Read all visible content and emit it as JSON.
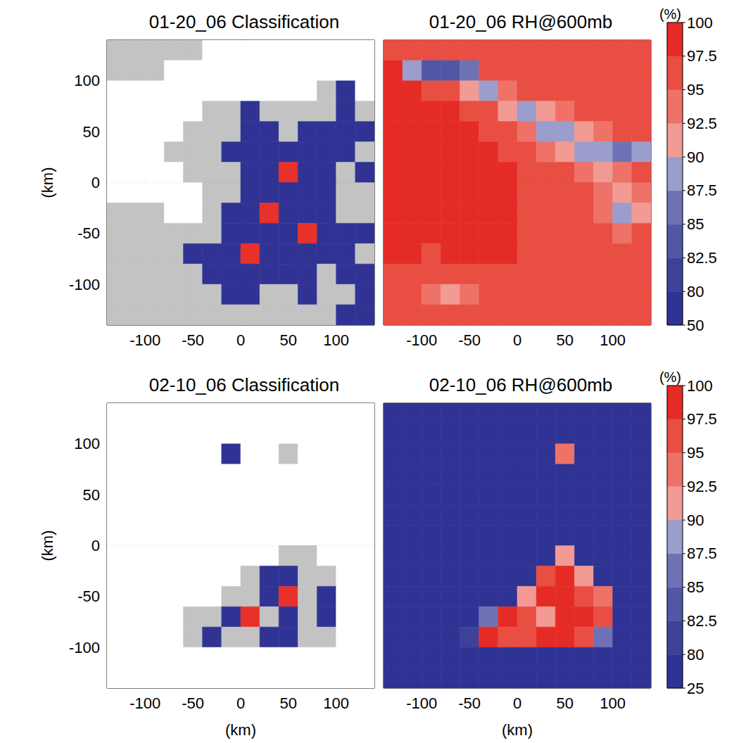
{
  "chart_data": [
    {
      "type": "heatmap",
      "title": "01-20_06 Classification",
      "x": [
        -130,
        -110,
        -90,
        -70,
        -50,
        -30,
        -10,
        10,
        30,
        50,
        70,
        90,
        110,
        130
      ],
      "y": [
        130,
        110,
        90,
        70,
        50,
        30,
        10,
        -10,
        -30,
        -50,
        -70,
        -90,
        -110,
        -130
      ],
      "values": [
        [
          1,
          1,
          1,
          1,
          1,
          0,
          0,
          0,
          0,
          0,
          0,
          0,
          0,
          0
        ],
        [
          1,
          1,
          1,
          0,
          0,
          0,
          0,
          0,
          0,
          0,
          0,
          0,
          0,
          0
        ],
        [
          0,
          0,
          0,
          0,
          0,
          0,
          0,
          0,
          0,
          0,
          0,
          1,
          2,
          0
        ],
        [
          0,
          0,
          0,
          0,
          0,
          1,
          1,
          2,
          1,
          1,
          1,
          1,
          2,
          1
        ],
        [
          0,
          0,
          0,
          0,
          1,
          1,
          1,
          2,
          2,
          1,
          2,
          2,
          2,
          2
        ],
        [
          0,
          0,
          0,
          1,
          1,
          1,
          2,
          2,
          2,
          2,
          2,
          2,
          2,
          1
        ],
        [
          0,
          0,
          0,
          0,
          1,
          1,
          1,
          2,
          2,
          3,
          2,
          2,
          1,
          2
        ],
        [
          0,
          0,
          0,
          0,
          0,
          1,
          1,
          2,
          2,
          2,
          2,
          2,
          1,
          1
        ],
        [
          1,
          1,
          1,
          0,
          0,
          1,
          2,
          2,
          3,
          2,
          2,
          2,
          1,
          1
        ],
        [
          1,
          1,
          1,
          1,
          1,
          1,
          2,
          2,
          2,
          2,
          3,
          2,
          2,
          2
        ],
        [
          1,
          1,
          1,
          1,
          2,
          2,
          2,
          3,
          2,
          2,
          2,
          2,
          2,
          1
        ],
        [
          1,
          1,
          1,
          1,
          1,
          2,
          2,
          2,
          2,
          2,
          2,
          1,
          2,
          2
        ],
        [
          1,
          1,
          1,
          1,
          1,
          1,
          2,
          2,
          1,
          1,
          2,
          1,
          1,
          2
        ],
        [
          1,
          1,
          1,
          1,
          1,
          1,
          1,
          1,
          1,
          1,
          1,
          1,
          2,
          2
        ]
      ],
      "colors": [
        "#ffffff",
        "#c3c3c3",
        "#303394",
        "#e8312a"
      ],
      "xlim": [
        -140,
        140
      ],
      "ylim": [
        -140,
        140
      ],
      "xticks": [
        -100,
        -50,
        0,
        50,
        100
      ],
      "yticks": [
        -100,
        -50,
        0,
        50,
        100
      ],
      "ylabel": "(km)",
      "tick_labels": true
    },
    {
      "type": "heatmap",
      "title": "01-20_06 RH@600mb",
      "x": [
        -130,
        -110,
        -90,
        -70,
        -50,
        -30,
        -10,
        10,
        30,
        50,
        70,
        90,
        110,
        130
      ],
      "y": [
        130,
        110,
        90,
        70,
        50,
        30,
        10,
        -10,
        -30,
        -50,
        -70,
        -90,
        -110,
        -130
      ],
      "values": [
        [
          97,
          96,
          95,
          96,
          96,
          97,
          97,
          97,
          97,
          97,
          97,
          97,
          97,
          97
        ],
        [
          98,
          88,
          84,
          83,
          86,
          95,
          97,
          97,
          97,
          97,
          97,
          97,
          97,
          97
        ],
        [
          99,
          98,
          96,
          95,
          91,
          89,
          93,
          96,
          97,
          96,
          96,
          97,
          97,
          97
        ],
        [
          99,
          99,
          99,
          98,
          97,
          95,
          91,
          88,
          90,
          93,
          95,
          96,
          96,
          97
        ],
        [
          99,
          99,
          99,
          99,
          98,
          97,
          96,
          94,
          89,
          88,
          90,
          93,
          95,
          97
        ],
        [
          99,
          99,
          99,
          99,
          99,
          98,
          97,
          96,
          94,
          90,
          88,
          89,
          87,
          88
        ],
        [
          99,
          99,
          99,
          99,
          99,
          99,
          98,
          97,
          96,
          95,
          93,
          92,
          94,
          95
        ],
        [
          99,
          99,
          99,
          99,
          99,
          99,
          98,
          97,
          96,
          96,
          95,
          94,
          90,
          93
        ],
        [
          99,
          99,
          99,
          99,
          99,
          98,
          98,
          97,
          96,
          96,
          95,
          93,
          89,
          92
        ],
        [
          99,
          99,
          99,
          99,
          99,
          98,
          98,
          97,
          97,
          96,
          96,
          95,
          94,
          96
        ],
        [
          98,
          98,
          97,
          98,
          98,
          98,
          98,
          97,
          97,
          96,
          96,
          96,
          95,
          96
        ],
        [
          97,
          96,
          95,
          96,
          97,
          97,
          97,
          97,
          97,
          96,
          96,
          96,
          95,
          96
        ],
        [
          97,
          95,
          94,
          92,
          93,
          96,
          97,
          97,
          97,
          96,
          97,
          96,
          96,
          96
        ],
        [
          97,
          96,
          96,
          95,
          95,
          97,
          97,
          97,
          97,
          97,
          97,
          97,
          97,
          96
        ]
      ],
      "colorbar": {
        "label": "(%)",
        "levels": [
          50,
          80,
          82.5,
          85,
          87.5,
          90,
          92.5,
          95,
          97.5,
          100
        ],
        "colors": [
          "#2f3393",
          "#3d4199",
          "#5257a5",
          "#6e72b4",
          "#9b9dcc",
          "#f29a94",
          "#ee7268",
          "#e94e43",
          "#e52b25"
        ]
      },
      "xlim": [
        -140,
        140
      ],
      "ylim": [
        -140,
        140
      ],
      "xticks": [
        -100,
        -50,
        0,
        50,
        100
      ],
      "yticks": [
        -100,
        -50,
        0,
        50,
        100
      ],
      "tick_labels": "x"
    },
    {
      "type": "heatmap",
      "title": "02-10_06 Classification",
      "x": [
        -130,
        -110,
        -90,
        -70,
        -50,
        -30,
        -10,
        10,
        30,
        50,
        70,
        90,
        110,
        130
      ],
      "y": [
        130,
        110,
        90,
        70,
        50,
        30,
        10,
        -10,
        -30,
        -50,
        -70,
        -90,
        -110,
        -130
      ],
      "values": [
        [
          0,
          0,
          0,
          0,
          0,
          0,
          0,
          0,
          0,
          0,
          0,
          0,
          0,
          0
        ],
        [
          0,
          0,
          0,
          0,
          0,
          0,
          0,
          0,
          0,
          0,
          0,
          0,
          0,
          0
        ],
        [
          0,
          0,
          0,
          0,
          0,
          0,
          2,
          0,
          0,
          1,
          0,
          0,
          0,
          0
        ],
        [
          0,
          0,
          0,
          0,
          0,
          0,
          0,
          0,
          0,
          0,
          0,
          0,
          0,
          0
        ],
        [
          0,
          0,
          0,
          0,
          0,
          0,
          0,
          0,
          0,
          0,
          0,
          0,
          0,
          0
        ],
        [
          0,
          0,
          0,
          0,
          0,
          0,
          0,
          0,
          0,
          0,
          0,
          0,
          0,
          0
        ],
        [
          0,
          0,
          0,
          0,
          0,
          0,
          0,
          0,
          0,
          0,
          0,
          0,
          0,
          0
        ],
        [
          0,
          0,
          0,
          0,
          0,
          0,
          0,
          0,
          0,
          1,
          1,
          0,
          0,
          0
        ],
        [
          0,
          0,
          0,
          0,
          0,
          0,
          0,
          1,
          2,
          2,
          1,
          1,
          0,
          0
        ],
        [
          0,
          0,
          0,
          0,
          0,
          0,
          1,
          1,
          2,
          3,
          1,
          2,
          0,
          0
        ],
        [
          0,
          0,
          0,
          0,
          1,
          1,
          2,
          3,
          1,
          2,
          1,
          2,
          0,
          0
        ],
        [
          0,
          0,
          0,
          0,
          1,
          2,
          1,
          1,
          2,
          2,
          1,
          1,
          0,
          0
        ],
        [
          0,
          0,
          0,
          0,
          0,
          0,
          0,
          0,
          0,
          0,
          0,
          0,
          0,
          0
        ],
        [
          0,
          0,
          0,
          0,
          0,
          0,
          0,
          0,
          0,
          0,
          0,
          0,
          0,
          0
        ]
      ],
      "colors": [
        "#ffffff",
        "#c3c3c3",
        "#303394",
        "#e8312a"
      ],
      "xlim": [
        -140,
        140
      ],
      "ylim": [
        -140,
        140
      ],
      "xticks": [
        -100,
        -50,
        0,
        50,
        100
      ],
      "yticks": [
        -100,
        -50,
        0,
        50,
        100
      ],
      "xlabel": "(km)",
      "ylabel": "(km)",
      "tick_labels": true
    },
    {
      "type": "heatmap",
      "title": "02-10_06 RH@600mb",
      "x": [
        -130,
        -110,
        -90,
        -70,
        -50,
        -30,
        -10,
        10,
        30,
        50,
        70,
        90,
        110,
        130
      ],
      "y": [
        130,
        110,
        90,
        70,
        50,
        30,
        10,
        -10,
        -30,
        -50,
        -70,
        -90,
        -110,
        -130
      ],
      "values": [
        [
          30,
          30,
          30,
          30,
          30,
          30,
          30,
          30,
          30,
          30,
          30,
          30,
          30,
          30
        ],
        [
          30,
          30,
          30,
          30,
          30,
          30,
          30,
          30,
          30,
          30,
          30,
          30,
          30,
          30
        ],
        [
          30,
          30,
          30,
          30,
          30,
          30,
          30,
          30,
          30,
          93,
          30,
          30,
          30,
          30
        ],
        [
          30,
          30,
          30,
          30,
          30,
          30,
          30,
          30,
          30,
          30,
          30,
          30,
          30,
          30
        ],
        [
          30,
          30,
          30,
          30,
          30,
          30,
          30,
          30,
          30,
          30,
          30,
          30,
          30,
          30
        ],
        [
          30,
          30,
          30,
          30,
          30,
          30,
          30,
          30,
          30,
          30,
          30,
          30,
          30,
          30
        ],
        [
          30,
          30,
          30,
          30,
          30,
          30,
          30,
          30,
          30,
          30,
          30,
          30,
          30,
          30
        ],
        [
          30,
          30,
          30,
          30,
          30,
          30,
          30,
          30,
          30,
          92,
          30,
          30,
          30,
          30
        ],
        [
          30,
          30,
          30,
          30,
          30,
          30,
          30,
          60,
          96,
          98,
          90,
          30,
          30,
          30
        ],
        [
          30,
          30,
          30,
          30,
          30,
          30,
          70,
          90,
          98,
          98,
          97,
          93,
          30,
          30
        ],
        [
          30,
          30,
          30,
          30,
          30,
          85,
          98,
          97,
          90,
          98,
          98,
          95,
          30,
          30
        ],
        [
          30,
          30,
          30,
          30,
          80,
          98,
          97,
          96,
          98,
          98,
          97,
          85,
          30,
          30
        ],
        [
          30,
          30,
          30,
          30,
          30,
          30,
          30,
          30,
          30,
          30,
          30,
          30,
          30,
          30
        ],
        [
          30,
          30,
          30,
          30,
          30,
          30,
          30,
          30,
          30,
          30,
          30,
          30,
          30,
          30
        ]
      ],
      "colorbar": {
        "label": "(%)",
        "levels": [
          25,
          80,
          82.5,
          85,
          87.5,
          90,
          92.5,
          95,
          97.5,
          100
        ],
        "colors": [
          "#2f3393",
          "#3d4199",
          "#5257a5",
          "#6e72b4",
          "#9b9dcc",
          "#f29a94",
          "#ee7268",
          "#e94e43",
          "#e52b25"
        ]
      },
      "xlim": [
        -140,
        140
      ],
      "ylim": [
        -140,
        140
      ],
      "xticks": [
        -100,
        -50,
        0,
        50,
        100
      ],
      "yticks": [
        -100,
        -50,
        0,
        50,
        100
      ],
      "xlabel": "(km)",
      "tick_labels": "x"
    }
  ]
}
